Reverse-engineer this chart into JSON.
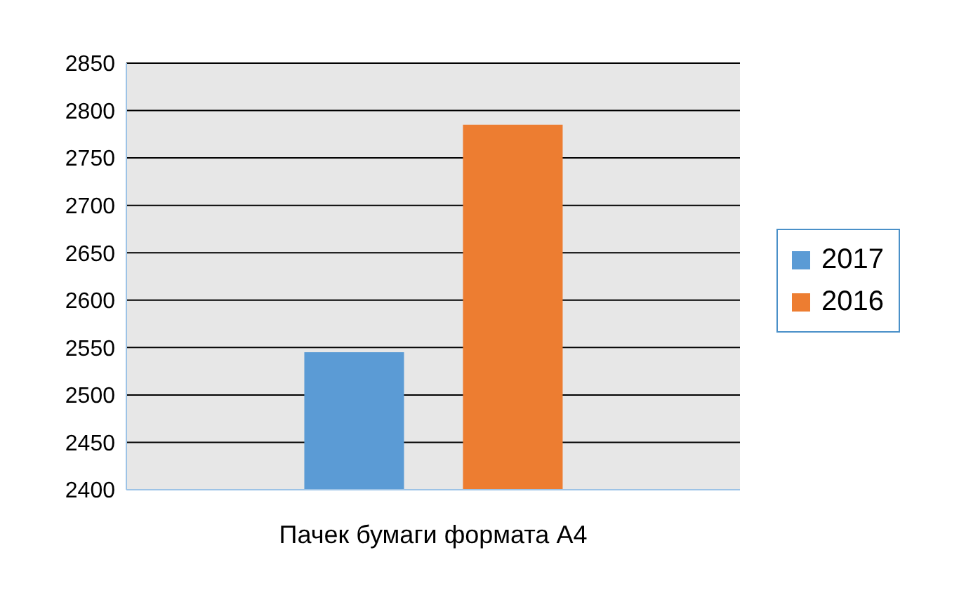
{
  "chart_data": {
    "type": "bar",
    "xlabel": "Пачек бумаги формата А4",
    "categories": [
      null
    ],
    "series": [
      {
        "name": "2017",
        "color": "#5b9bd5",
        "values": [
          2545
        ]
      },
      {
        "name": "2016",
        "color": "#ed7d31",
        "values": [
          2785
        ]
      }
    ],
    "ylim": [
      2400,
      2850
    ],
    "yticks": [
      2400,
      2450,
      2500,
      2550,
      2600,
      2650,
      2700,
      2750,
      2800,
      2850
    ],
    "grid": "y",
    "legend": "right"
  }
}
